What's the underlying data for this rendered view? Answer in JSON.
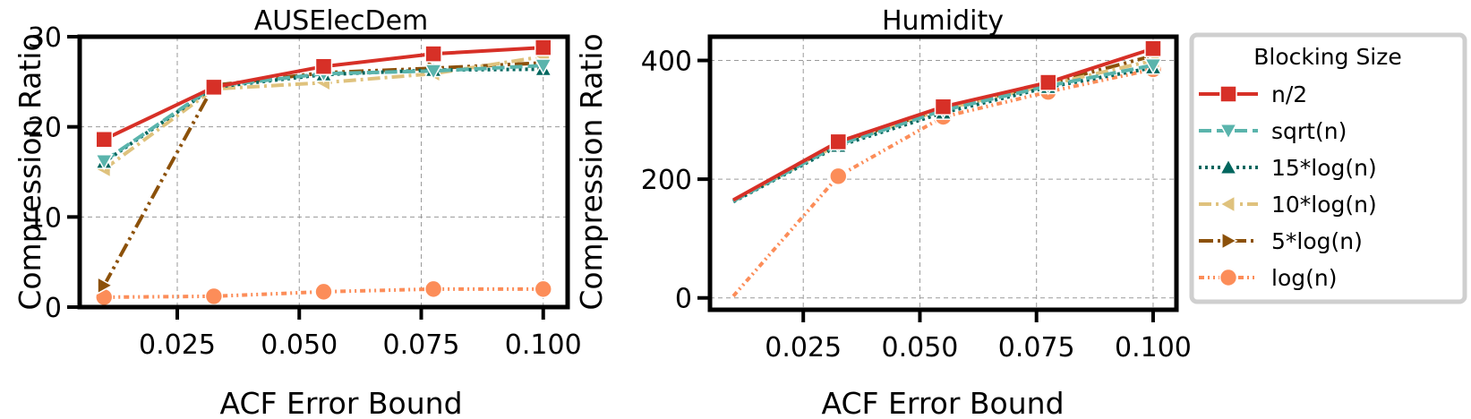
{
  "chart_data": [
    {
      "type": "line",
      "title": "AUSElecDem",
      "xlabel": "ACF Error Bound",
      "ylabel": "Compression Ratio",
      "xlim": [
        0.005,
        0.105
      ],
      "ylim": [
        0,
        30
      ],
      "xticks": [
        0.025,
        0.05,
        0.075,
        0.1
      ],
      "xtick_labels": [
        "0.025",
        "0.050",
        "0.075",
        "0.100"
      ],
      "yticks": [
        0,
        10,
        20,
        30
      ],
      "ytick_labels": [
        "0",
        "10",
        "20",
        "30"
      ],
      "x": [
        0.01,
        0.0325,
        0.055,
        0.0775,
        0.1
      ],
      "series": [
        {
          "name": "n/2",
          "values": [
            18.6,
            24.4,
            26.7,
            28.1,
            28.8
          ]
        },
        {
          "name": "sqrt(n)",
          "values": [
            16.2,
            24.5,
            25.9,
            26.2,
            26.8
          ]
        },
        {
          "name": "15*log(n)",
          "values": [
            16.1,
            24.4,
            25.8,
            26.3,
            26.4
          ]
        },
        {
          "name": "10*log(n)",
          "values": [
            15.3,
            24.2,
            24.9,
            25.9,
            27.8
          ]
        },
        {
          "name": "5*log(n)",
          "values": [
            2.4,
            24.6,
            26.0,
            26.5,
            27.1
          ]
        },
        {
          "name": "log(n)",
          "values": [
            1.1,
            1.2,
            1.7,
            2.0,
            2.0
          ]
        }
      ]
    },
    {
      "type": "line",
      "title": "Humidity",
      "xlabel": "ACF Error Bound",
      "ylabel": "Compression Ratio",
      "xlim": [
        0.005,
        0.105
      ],
      "ylim": [
        -20,
        440
      ],
      "xticks": [
        0.025,
        0.05,
        0.075,
        0.1
      ],
      "xtick_labels": [
        "0.025",
        "0.050",
        "0.075",
        "0.100"
      ],
      "yticks": [
        0,
        200,
        400
      ],
      "ytick_labels": [
        "0",
        "200",
        "400"
      ],
      "x": [
        0.01,
        0.0325,
        0.055,
        0.0775,
        0.1
      ],
      "series": [
        {
          "name": "n/2",
          "values": [
            165,
            263,
            322,
            363,
            420
          ]
        },
        {
          "name": "sqrt(n)",
          "values": [
            163,
            258,
            316,
            357,
            392
          ]
        },
        {
          "name": "15*log(n)",
          "values": [
            162,
            256,
            312,
            355,
            388
          ]
        },
        {
          "name": "10*log(n)",
          "values": [
            163,
            259,
            318,
            359,
            400
          ]
        },
        {
          "name": "5*log(n)",
          "values": [
            164,
            261,
            319,
            361,
            408
          ]
        },
        {
          "name": "log(n)",
          "values": [
            3,
            205,
            305,
            347,
            385
          ]
        }
      ]
    }
  ],
  "legend": {
    "title": "Blocking Size",
    "placement": "right",
    "entries": [
      "n/2",
      "sqrt(n)",
      "15*log(n)",
      "10*log(n)",
      "5*log(n)",
      "log(n)"
    ]
  },
  "styles": [
    {
      "color": "#d73027",
      "marker": "square",
      "dash": "none"
    },
    {
      "color": "#5ab4ac",
      "marker": "tri-down",
      "dash": "14 6"
    },
    {
      "color": "#01665e",
      "marker": "tri-up",
      "dash": "3 4"
    },
    {
      "color": "#dfc27d",
      "marker": "tri-left",
      "dash": "14 5 3 5"
    },
    {
      "color": "#8c510a",
      "marker": "tri-right",
      "dash": "16 5 3 5 3 5"
    },
    {
      "color": "#fc8d59",
      "marker": "circle",
      "dash": "6 4 2 4 2 4"
    }
  ]
}
